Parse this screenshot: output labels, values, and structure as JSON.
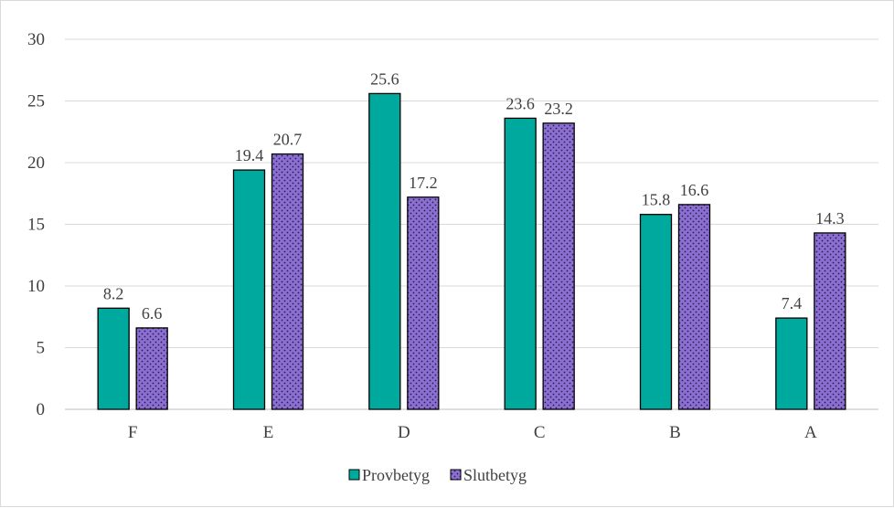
{
  "chart_data": {
    "type": "bar",
    "title": "",
    "xlabel": "",
    "ylabel": "",
    "categories": [
      "F",
      "E",
      "D",
      "C",
      "B",
      "A"
    ],
    "series": [
      {
        "name": "Provbetyg",
        "values": [
          8.2,
          19.4,
          25.6,
          23.6,
          15.8,
          7.4
        ],
        "color": "#00a99d",
        "pattern": "solid"
      },
      {
        "name": "Slutbetyg",
        "values": [
          6.6,
          20.7,
          17.2,
          23.2,
          16.6,
          14.3
        ],
        "color": "#8b6fd1",
        "pattern": "dotted"
      }
    ],
    "ylim": [
      0,
      30
    ],
    "yticks": [
      0,
      5,
      10,
      15,
      20,
      25,
      30
    ],
    "ytick_labels": [
      "0",
      "5",
      "10",
      "15",
      "20",
      "25",
      "30"
    ],
    "data_labels": [
      [
        "8.2",
        "19.4",
        "25.6",
        "23.6",
        "15.8",
        "7.4"
      ],
      [
        "6.6",
        "20.7",
        "17.2",
        "23.2",
        "16.6",
        "14.3"
      ]
    ],
    "grid": true,
    "legend": "bottom-center"
  }
}
